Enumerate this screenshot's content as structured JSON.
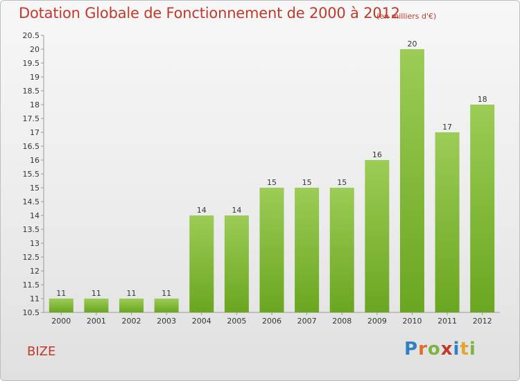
{
  "header": {
    "title": "Dotation Globale de Fonctionnement de 2000 à 2012",
    "unit": "(en milliers d'€)"
  },
  "footer": {
    "commune": "BIZE",
    "logo_letters": [
      "P",
      "r",
      "o",
      "x",
      "i",
      "t",
      "i"
    ],
    "logo_colors": [
      "#2f7fc1",
      "#e06d2e",
      "#7cb342",
      "#c0392b",
      "#2f7fc1",
      "#e0a72e",
      "#7cb342"
    ]
  },
  "chart_data": {
    "type": "bar",
    "title": "Dotation Globale de Fonctionnement de 2000 à 2012",
    "xlabel": "",
    "ylabel": "",
    "categories": [
      "2000",
      "2001",
      "2002",
      "2003",
      "2004",
      "2005",
      "2006",
      "2007",
      "2008",
      "2009",
      "2010",
      "2011",
      "2012"
    ],
    "values": [
      11,
      11,
      11,
      11,
      14,
      14,
      15,
      15,
      15,
      16,
      20,
      17,
      18
    ],
    "ylim": [
      10.5,
      20.5
    ],
    "yticks": [
      10.5,
      11,
      11.5,
      12,
      12.5,
      13,
      13.5,
      14,
      14.5,
      15,
      15.5,
      16,
      16.5,
      17,
      17.5,
      18,
      18.5,
      19,
      19.5,
      20,
      20.5
    ],
    "grid": false,
    "legend": "none",
    "bar_color_top": "#9ccc56",
    "bar_color_bottom": "#6aa620",
    "axis_color": "#999999"
  }
}
